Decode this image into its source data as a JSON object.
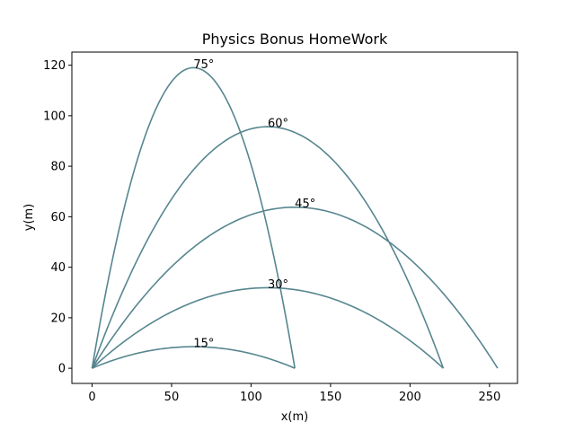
{
  "chart_data": {
    "type": "line",
    "title": "Physics Bonus HomeWork",
    "xlabel": "x(m)",
    "ylabel": "y(m)",
    "xlim": [
      -12.7,
      267.6
    ],
    "ylim": [
      -6.0,
      125.2
    ],
    "xticks": [
      0,
      50,
      100,
      150,
      200,
      250
    ],
    "yticks": [
      0,
      20,
      40,
      60,
      80,
      100,
      120
    ],
    "grid": false,
    "line_color": "#56868f",
    "series": [
      {
        "angle_deg": 15,
        "annotation": "15°",
        "range": 127.55,
        "max_height": 8.54
      },
      {
        "angle_deg": 30,
        "annotation": "30°",
        "range": 220.93,
        "max_height": 31.89
      },
      {
        "angle_deg": 45,
        "annotation": "45°",
        "range": 255.1,
        "max_height": 63.78
      },
      {
        "angle_deg": 60,
        "annotation": "60°",
        "range": 220.93,
        "max_height": 95.66
      },
      {
        "angle_deg": 75,
        "annotation": "75°",
        "range": 127.55,
        "max_height": 119.02
      }
    ]
  }
}
